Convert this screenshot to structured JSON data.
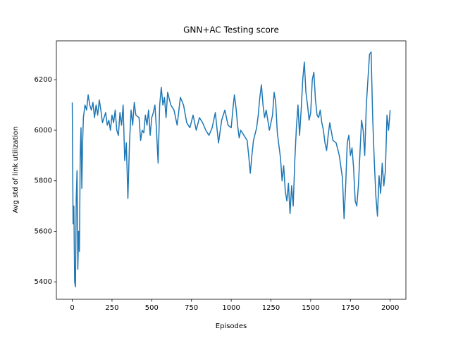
{
  "chart_data": {
    "type": "line",
    "title": "GNN+AC Testing score",
    "xlabel": "Episodes",
    "ylabel": "Avg std of link utilization",
    "color": "#1f77b4",
    "x": [
      0,
      5,
      10,
      15,
      20,
      25,
      30,
      35,
      40,
      45,
      50,
      55,
      60,
      65,
      70,
      80,
      90,
      100,
      110,
      120,
      130,
      140,
      150,
      160,
      170,
      180,
      190,
      200,
      210,
      220,
      230,
      240,
      250,
      260,
      270,
      280,
      290,
      300,
      310,
      320,
      330,
      340,
      350,
      360,
      370,
      380,
      390,
      400,
      420,
      430,
      440,
      450,
      460,
      470,
      480,
      490,
      500,
      510,
      520,
      530,
      540,
      550,
      560,
      570,
      580,
      590,
      600,
      620,
      640,
      660,
      680,
      700,
      720,
      740,
      760,
      780,
      800,
      820,
      840,
      860,
      880,
      900,
      920,
      940,
      960,
      980,
      1000,
      1010,
      1020,
      1030,
      1040,
      1050,
      1060,
      1080,
      1100,
      1110,
      1120,
      1130,
      1140,
      1160,
      1170,
      1180,
      1190,
      1200,
      1210,
      1220,
      1240,
      1260,
      1270,
      1280,
      1290,
      1300,
      1310,
      1320,
      1330,
      1340,
      1350,
      1360,
      1370,
      1380,
      1390,
      1400,
      1410,
      1420,
      1430,
      1440,
      1450,
      1460,
      1470,
      1480,
      1490,
      1500,
      1510,
      1520,
      1530,
      1540,
      1550,
      1560,
      1570,
      1580,
      1590,
      1600,
      1610,
      1620,
      1640,
      1660,
      1680,
      1700,
      1710,
      1720,
      1730,
      1740,
      1750,
      1760,
      1770,
      1780,
      1790,
      1800,
      1810,
      1820,
      1830,
      1840,
      1850,
      1860,
      1870,
      1880,
      1890,
      1900,
      1910,
      1920,
      1930,
      1940,
      1950,
      1960,
      1970,
      1980,
      1990,
      2000
    ],
    "values": [
      6110,
      5630,
      5700,
      5400,
      5380,
      5730,
      5840,
      5450,
      5600,
      5520,
      5900,
      6010,
      5770,
      5950,
      6050,
      6100,
      6080,
      6140,
      6100,
      6080,
      6110,
      6050,
      6100,
      6060,
      6120,
      6080,
      6030,
      6050,
      6070,
      6020,
      6040,
      6000,
      6060,
      6030,
      6080,
      6000,
      5980,
      6070,
      6020,
      6100,
      5880,
      5950,
      5730,
      5950,
      6080,
      6020,
      6110,
      6060,
      6050,
      5960,
      6000,
      5990,
      6060,
      6020,
      6080,
      5980,
      6050,
      6070,
      6100,
      6000,
      5870,
      6100,
      6170,
      6100,
      6130,
      6050,
      6150,
      6100,
      6080,
      6020,
      6130,
      6100,
      6030,
      6010,
      6060,
      6000,
      6050,
      6030,
      6000,
      5980,
      6010,
      6070,
      5950,
      6040,
      6080,
      6020,
      6010,
      6080,
      6140,
      6090,
      6020,
      5970,
      6000,
      5980,
      5960,
      5900,
      5830,
      5900,
      5960,
      6010,
      6060,
      6130,
      6180,
      6100,
      6050,
      6080,
      6000,
      6060,
      6150,
      6110,
      5990,
      5940,
      5890,
      5800,
      5860,
      5760,
      5720,
      5790,
      5670,
      5780,
      5700,
      5880,
      6010,
      6100,
      5980,
      6080,
      6200,
      6270,
      6150,
      6100,
      6040,
      6070,
      6200,
      6230,
      6120,
      6060,
      6050,
      6080,
      6030,
      6000,
      5950,
      5920,
      5980,
      6030,
      5960,
      5950,
      5900,
      5810,
      5650,
      5780,
      5950,
      5980,
      5900,
      5930,
      5850,
      5720,
      5700,
      5780,
      5910,
      6040,
      6000,
      5900,
      6100,
      6200,
      6300,
      6310,
      6050,
      5880,
      5740,
      5660,
      5820,
      5750,
      5870,
      5780,
      5840,
      6060,
      6000,
      6080
    ],
    "xlim": [
      -100,
      2099
    ],
    "ylim": [
      5331,
      6354
    ],
    "xticks": [
      0,
      250,
      500,
      750,
      1000,
      1250,
      1500,
      1750,
      2000
    ],
    "yticks": [
      5400,
      5600,
      5800,
      6000,
      6200
    ]
  }
}
